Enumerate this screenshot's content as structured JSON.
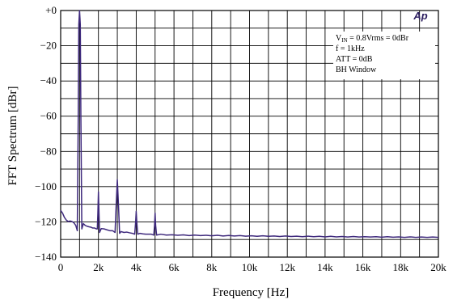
{
  "chart_data": {
    "type": "line",
    "title": "",
    "xlabel": "Frequency [Hz]",
    "ylabel": "FFT Spectrum [dBr]",
    "xlim": [
      0,
      20000
    ],
    "ylim": [
      -140,
      0
    ],
    "x_ticks": [
      0,
      2000,
      4000,
      6000,
      8000,
      10000,
      12000,
      14000,
      16000,
      18000,
      20000
    ],
    "x_tick_labels": [
      "0",
      "2k",
      "4k",
      "6k",
      "8k",
      "10k",
      "12k",
      "14k",
      "16k",
      "18k",
      "20k"
    ],
    "y_ticks": [
      0,
      -20,
      -40,
      -60,
      -80,
      -100,
      -120,
      -140
    ],
    "y_tick_labels": [
      "+0",
      "−20",
      "−40",
      "−60",
      "−80",
      "−100",
      "−120",
      "−140"
    ],
    "grid": true,
    "line_color": "#3f2a7d",
    "logo_text": "Ap",
    "annotations": [
      {
        "prefix": "V",
        "sub": "IN",
        "text": " = 0.8Vrms = 0dBr"
      },
      {
        "prefix": "",
        "sub": "",
        "text": " f = 1kHz"
      },
      {
        "prefix": "",
        "sub": "",
        "text": "ATT = 0dB"
      },
      {
        "prefix": "",
        "sub": "",
        "text": "BH Window"
      }
    ],
    "series": [
      {
        "values": [
          [
            0,
            -113.5
          ],
          [
            100,
            -115.0
          ],
          [
            200,
            -117.5
          ],
          [
            300,
            -119.0
          ],
          [
            400,
            -119.8
          ],
          [
            500,
            -119.5
          ],
          [
            600,
            -119.8
          ],
          [
            700,
            -120.5
          ],
          [
            800,
            -122.0
          ],
          [
            880,
            -125.0
          ],
          [
            930,
            -60.0
          ],
          [
            960,
            -8.0
          ],
          [
            1000,
            0.0
          ],
          [
            1040,
            -8.0
          ],
          [
            1070,
            -60.0
          ],
          [
            1120,
            -124.0
          ],
          [
            1200,
            -121.0
          ],
          [
            1300,
            -122.0
          ],
          [
            1400,
            -122.5
          ],
          [
            1500,
            -122.8
          ],
          [
            1600,
            -123.0
          ],
          [
            1700,
            -123.5
          ],
          [
            1800,
            -123.5
          ],
          [
            1900,
            -124.0
          ],
          [
            1940,
            -124.0
          ],
          [
            1970,
            -115.0
          ],
          [
            2000,
            -103.0
          ],
          [
            2030,
            -115.0
          ],
          [
            2060,
            -126.0
          ],
          [
            2150,
            -123.8
          ],
          [
            2300,
            -124.0
          ],
          [
            2450,
            -124.5
          ],
          [
            2600,
            -125.0
          ],
          [
            2750,
            -125.0
          ],
          [
            2880,
            -126.0
          ],
          [
            2940,
            -110.0
          ],
          [
            3000,
            -96.0
          ],
          [
            3060,
            -110.0
          ],
          [
            3120,
            -126.5
          ],
          [
            3200,
            -125.5
          ],
          [
            3350,
            -126.0
          ],
          [
            3500,
            -125.8
          ],
          [
            3650,
            -126.2
          ],
          [
            3800,
            -126.5
          ],
          [
            3920,
            -127.0
          ],
          [
            3970,
            -120.0
          ],
          [
            4000,
            -114.0
          ],
          [
            4030,
            -120.0
          ],
          [
            4080,
            -127.0
          ],
          [
            4200,
            -126.5
          ],
          [
            4350,
            -126.8
          ],
          [
            4500,
            -127.0
          ],
          [
            4650,
            -127.0
          ],
          [
            4800,
            -127.0
          ],
          [
            4930,
            -127.5
          ],
          [
            4970,
            -122.0
          ],
          [
            5000,
            -115.0
          ],
          [
            5030,
            -122.0
          ],
          [
            5080,
            -127.5
          ],
          [
            5300,
            -127.0
          ],
          [
            5600,
            -127.5
          ],
          [
            5900,
            -127.3
          ],
          [
            6200,
            -127.6
          ],
          [
            6500,
            -127.4
          ],
          [
            6800,
            -127.8
          ],
          [
            7100,
            -127.5
          ],
          [
            7400,
            -127.8
          ],
          [
            7700,
            -127.6
          ],
          [
            8000,
            -127.9
          ],
          [
            8300,
            -127.6
          ],
          [
            8600,
            -128.0
          ],
          [
            8900,
            -127.7
          ],
          [
            9200,
            -128.0
          ],
          [
            9500,
            -127.8
          ],
          [
            9800,
            -128.1
          ],
          [
            10100,
            -127.9
          ],
          [
            10400,
            -128.2
          ],
          [
            10700,
            -127.9
          ],
          [
            11000,
            -128.2
          ],
          [
            11300,
            -128.0
          ],
          [
            11600,
            -128.3
          ],
          [
            11900,
            -128.0
          ],
          [
            12200,
            -128.3
          ],
          [
            12500,
            -128.1
          ],
          [
            12800,
            -128.4
          ],
          [
            13100,
            -128.1
          ],
          [
            13400,
            -128.4
          ],
          [
            13700,
            -128.2
          ],
          [
            14000,
            -128.5
          ],
          [
            14300,
            -128.2
          ],
          [
            14600,
            -128.5
          ],
          [
            14900,
            -128.3
          ],
          [
            15200,
            -128.6
          ],
          [
            15500,
            -128.3
          ],
          [
            15800,
            -128.6
          ],
          [
            16100,
            -128.4
          ],
          [
            16400,
            -128.6
          ],
          [
            16700,
            -128.4
          ],
          [
            17000,
            -128.7
          ],
          [
            17300,
            -128.4
          ],
          [
            17600,
            -128.7
          ],
          [
            17900,
            -128.5
          ],
          [
            18200,
            -128.8
          ],
          [
            18500,
            -128.5
          ],
          [
            18800,
            -128.8
          ],
          [
            19100,
            -128.6
          ],
          [
            19400,
            -128.8
          ],
          [
            19700,
            -128.6
          ],
          [
            20000,
            -128.8
          ]
        ]
      }
    ]
  }
}
